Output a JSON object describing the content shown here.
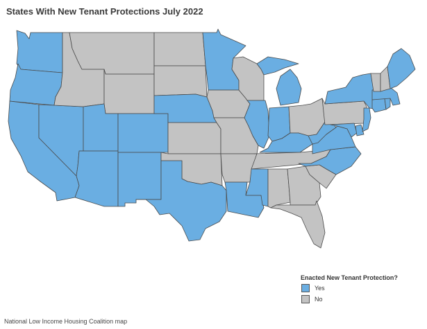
{
  "title": "States With New Tenant Protections July 2022",
  "colors": {
    "yes": "#6aaee2",
    "no": "#c3c3c3",
    "border": "#4a4a4a"
  },
  "legend": {
    "title": "Enacted New Tenant Protection?",
    "items": [
      {
        "label": "Yes",
        "key": "yes"
      },
      {
        "label": "No",
        "key": "no"
      }
    ]
  },
  "credit": "National Low Income Housing Coalition map",
  "states": {
    "WA": "yes",
    "OR": "yes",
    "CA": "yes",
    "NV": "yes",
    "UT": "yes",
    "AZ": "yes",
    "CO": "yes",
    "NM": "yes",
    "TX": "yes",
    "NE": "yes",
    "MN": "yes",
    "IL": "yes",
    "MI": "yes",
    "IN": "yes",
    "KY": "yes",
    "WV": "yes",
    "VA": "yes",
    "NC": "yes",
    "LA": "yes",
    "MS": "yes",
    "NY": "yes",
    "NJ": "yes",
    "DE": "yes",
    "MD": "yes",
    "CT": "yes",
    "RI": "yes",
    "MA": "yes",
    "ME": "yes",
    "ID": "no",
    "MT": "no",
    "WY": "no",
    "ND": "no",
    "SD": "no",
    "KS": "no",
    "OK": "no",
    "IA": "no",
    "MO": "no",
    "AR": "no",
    "WI": "no",
    "OH": "no",
    "TN": "no",
    "AL": "no",
    "GA": "no",
    "SC": "no",
    "FL": "no",
    "PA": "no",
    "VT": "no",
    "NH": "no"
  }
}
